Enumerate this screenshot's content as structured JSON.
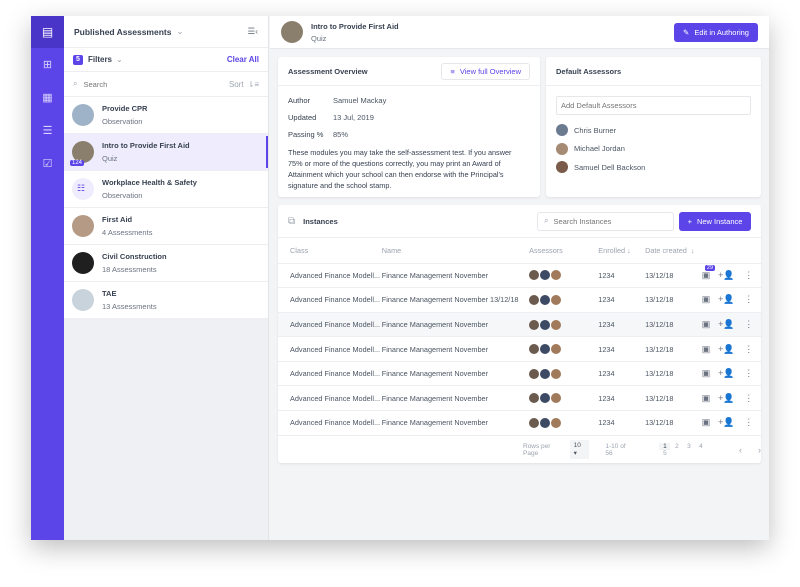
{
  "rail": {
    "items": [
      "assessments-icon",
      "grid-icon",
      "calendar-icon",
      "checklist-icon",
      "clipboard-check-icon"
    ]
  },
  "list": {
    "title": "Published Assessments",
    "filters_count": "5",
    "filters_label": "Filters",
    "clear_all": "Clear All",
    "search_placeholder": "Search",
    "sort_label": "Sort",
    "items": [
      {
        "title": "Provide CPR",
        "sub": "Observation",
        "color": "#9fb3c8"
      },
      {
        "title": "Intro to Provide First Aid",
        "sub": "Quiz",
        "color": "#8a7f6d",
        "count": "124"
      },
      {
        "title": "Workplace Health & Safety",
        "sub": "Observation",
        "color": "#efedfd"
      },
      {
        "title": "First Aid",
        "sub": "4 Assessments",
        "color": "#b59a85"
      },
      {
        "title": "Civil Construction",
        "sub": "18 Assessments",
        "color": "#1f1f1f"
      },
      {
        "title": "TAE",
        "sub": "13 Assessments",
        "color": "#c9d3dc"
      }
    ]
  },
  "header": {
    "title": "Intro to Provide First Aid",
    "subtitle": "Quiz",
    "edit_button": "Edit in Authoring"
  },
  "overview": {
    "title": "Assessment Overview",
    "view_button": "View full Overview",
    "fields": [
      {
        "k": "Author",
        "v": "Samuel Mackay"
      },
      {
        "k": "Updated",
        "v": "13 Jul, 2019"
      },
      {
        "k": "Passing %",
        "v": "85%"
      }
    ],
    "description": "These modules you may take the self-assessment test. If you answer 75% or more of the questions correctly, you may print an Award of Attainment which your school can then endorse with the Principal's signature and the school stamp."
  },
  "assessors": {
    "title": "Default Assessors",
    "placeholder": "Add Default Assessors",
    "people": [
      "Chris Burner",
      "Michael Jordan",
      "Samuel Dell Backson"
    ]
  },
  "instances": {
    "title": "Instances",
    "search_placeholder": "Search Instances",
    "new_button": "New Instance",
    "columns": [
      "Class",
      "Name",
      "Assessors",
      "Enrolled",
      "Date created"
    ],
    "rows": [
      {
        "class": "Advanced Finance Modell...",
        "name": "Finance Management November",
        "enrolled": "1234",
        "date": "13/12/18",
        "badge": "29"
      },
      {
        "class": "Advanced Finance Modell...",
        "name": "Finance Management November 13/12/18",
        "enrolled": "1234",
        "date": "13/12/18"
      },
      {
        "class": "Advanced Finance Modell...",
        "name": "Finance Management November",
        "enrolled": "1234",
        "date": "13/12/18"
      },
      {
        "class": "Advanced Finance Modell...",
        "name": "Finance Management November",
        "enrolled": "1234",
        "date": "13/12/18"
      },
      {
        "class": "Advanced Finance Modell...",
        "name": "Finance Management November",
        "enrolled": "1234",
        "date": "13/12/18"
      },
      {
        "class": "Advanced Finance Modell...",
        "name": "Finance Management November",
        "enrolled": "1234",
        "date": "13/12/18"
      },
      {
        "class": "Advanced Finance Modell...",
        "name": "Finance Management November",
        "enrolled": "1234",
        "date": "13/12/18"
      }
    ],
    "footer": {
      "rows_per_page_label": "Rows per Page",
      "rows_per_page": "10",
      "range": "1-10 of 56",
      "pages": [
        "1",
        "2",
        "3",
        "4",
        "5"
      ],
      "current_page": "1"
    }
  },
  "colors": {
    "accent": "#5b45e8"
  }
}
